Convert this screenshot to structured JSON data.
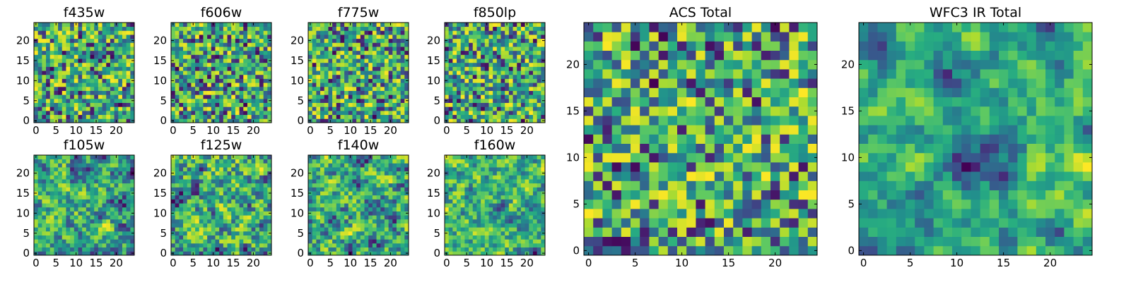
{
  "figure": {
    "panels": [
      {
        "title": "f435w",
        "seed": 11,
        "smooth": 0
      },
      {
        "title": "f606w",
        "seed": 23,
        "smooth": 0
      },
      {
        "title": "f775w",
        "seed": 37,
        "smooth": 0
      },
      {
        "title": "f850lp",
        "seed": 41,
        "smooth": 0
      },
      {
        "title": "f105w",
        "seed": 53,
        "smooth": 1
      },
      {
        "title": "f125w",
        "seed": 67,
        "smooth": 1
      },
      {
        "title": "f140w",
        "seed": 71,
        "smooth": 1
      },
      {
        "title": "f160w",
        "seed": 83,
        "smooth": 1
      },
      {
        "title": "ACS Total",
        "seed": 97,
        "smooth": 0
      },
      {
        "title": "WFC3 IR Total",
        "seed": 109,
        "smooth": 2
      }
    ],
    "colormap": "viridis"
  },
  "chart_data": {
    "type": "heatmap",
    "colormap": "viridis",
    "grid_size": [
      25,
      25
    ],
    "xlim": [
      -0.5,
      24.5
    ],
    "ylim": [
      -0.5,
      24.5
    ],
    "small_panel_x_ticks": [
      "0",
      "5",
      "10",
      "15",
      "20"
    ],
    "small_panel_y_ticks": [
      "0",
      "5",
      "10",
      "15",
      "20"
    ],
    "large_panel_x_ticks": [
      "0",
      "5",
      "10",
      "15",
      "20"
    ],
    "large_panel_y_ticks": [
      "0",
      "5",
      "10",
      "15",
      "20"
    ],
    "panel_titles": [
      "f435w",
      "f606w",
      "f775w",
      "f850lp",
      "f105w",
      "f125w",
      "f140w",
      "f160w",
      "ACS Total",
      "WFC3 IR Total"
    ]
  }
}
